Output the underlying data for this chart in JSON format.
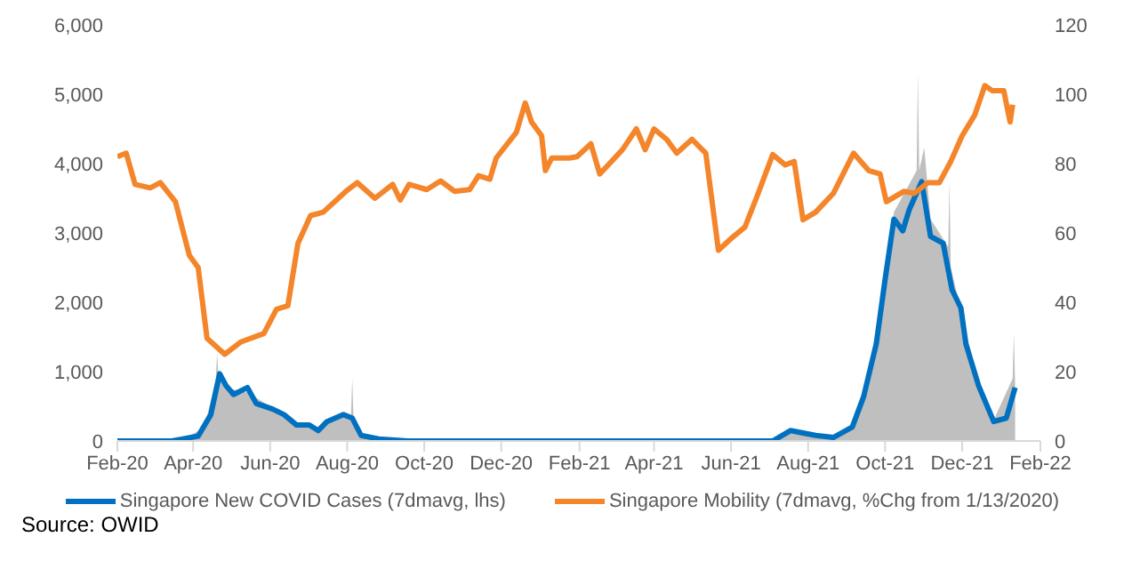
{
  "chart_data": {
    "type": "line",
    "xlim": [
      "2020-02-01",
      "2022-02-01"
    ],
    "xticks": [
      {
        "value": "2020-02-01",
        "label": "Feb-20"
      },
      {
        "value": "2020-04-01",
        "label": "Apr-20"
      },
      {
        "value": "2020-06-01",
        "label": "Jun-20"
      },
      {
        "value": "2020-08-01",
        "label": "Aug-20"
      },
      {
        "value": "2020-10-01",
        "label": "Oct-20"
      },
      {
        "value": "2020-12-01",
        "label": "Dec-20"
      },
      {
        "value": "2021-02-01",
        "label": "Feb-21"
      },
      {
        "value": "2021-04-01",
        "label": "Apr-21"
      },
      {
        "value": "2021-06-01",
        "label": "Jun-21"
      },
      {
        "value": "2021-08-01",
        "label": "Aug-21"
      },
      {
        "value": "2021-10-01",
        "label": "Oct-21"
      },
      {
        "value": "2021-12-01",
        "label": "Dec-21"
      },
      {
        "value": "2022-02-01",
        "label": "Feb-22"
      }
    ],
    "ylim": [
      0,
      6000
    ],
    "yticks": [
      0,
      {
        "value": 1000,
        "label": "1,000"
      },
      {
        "value": 2000,
        "label": "2,000"
      },
      {
        "value": 3000,
        "label": "3,000"
      },
      {
        "value": 4000,
        "label": "4,000"
      },
      {
        "value": 5000,
        "label": "5,000"
      },
      {
        "value": 6000,
        "label": "6,000"
      }
    ],
    "y2lim": [
      0,
      120
    ],
    "y2ticks": [
      0,
      20,
      40,
      60,
      80,
      100,
      120
    ],
    "legend": "bottom",
    "marker": "none",
    "series": [
      {
        "type": "area",
        "color": "#bfbfbf",
        "x": [
          "2020-02-01",
          "2020-03-25",
          "2020-04-10",
          "2020-04-19",
          "2020-04-20",
          "2020-04-21",
          "2020-05-01",
          "2020-05-14",
          "2020-06-03",
          "2020-06-22",
          "2020-07-09",
          "2020-07-29",
          "2020-08-04",
          "2020-08-05",
          "2020-08-06",
          "2020-08-14",
          "2020-09-18",
          "2021-07-04",
          "2021-07-18",
          "2021-08-21",
          "2021-09-05",
          "2021-09-14",
          "2021-09-24",
          "2021-10-08",
          "2021-10-20",
          "2021-10-26",
          "2021-10-27",
          "2021-10-28",
          "2021-11-01",
          "2021-11-06",
          "2021-11-20",
          "2021-11-21",
          "2021-11-22",
          "2021-11-30",
          "2021-12-14",
          "2021-12-26",
          "2022-01-10",
          "2022-01-11",
          "2022-01-12"
        ],
        "values": [
          0,
          30,
          200,
          900,
          1280,
          900,
          750,
          700,
          480,
          230,
          180,
          400,
          350,
          900,
          350,
          60,
          0,
          0,
          150,
          50,
          250,
          700,
          1500,
          3300,
          3700,
          3900,
          5300,
          3900,
          4230,
          3200,
          2800,
          3740,
          2500,
          1900,
          800,
          300,
          900,
          1560,
          800
        ]
      },
      {
        "name": "Singapore New COVID Cases (7dmavg, lhs)",
        "color": "#0070c0",
        "x": [
          "2020-02-01",
          "2020-03-15",
          "2020-03-24",
          "2020-04-05",
          "2020-04-15",
          "2020-04-22",
          "2020-04-27",
          "2020-05-03",
          "2020-05-14",
          "2020-05-21",
          "2020-06-03",
          "2020-06-12",
          "2020-06-22",
          "2020-07-02",
          "2020-07-09",
          "2020-07-16",
          "2020-07-29",
          "2020-08-05",
          "2020-08-12",
          "2020-08-26",
          "2020-09-18",
          "2021-07-04",
          "2021-07-18",
          "2021-08-07",
          "2021-08-21",
          "2021-09-05",
          "2021-09-14",
          "2021-09-24",
          "2021-10-01",
          "2021-10-08",
          "2021-10-15",
          "2021-10-20",
          "2021-10-30",
          "2021-11-06",
          "2021-11-16",
          "2021-11-23",
          "2021-11-30",
          "2021-12-04",
          "2021-12-14",
          "2021-12-26",
          "2022-01-05",
          "2022-01-12"
        ],
        "values": [
          0,
          0,
          30,
          70,
          380,
          970,
          800,
          670,
          770,
          540,
          460,
          380,
          230,
          230,
          150,
          280,
          380,
          330,
          80,
          30,
          0,
          0,
          150,
          80,
          50,
          200,
          640,
          1400,
          2330,
          3200,
          3030,
          3330,
          3740,
          2950,
          2850,
          2180,
          1920,
          1400,
          800,
          280,
          330,
          770
        ]
      },
      {
        "name": "Singapore Mobility (7dmavg, %Chg from 1/13/2020)",
        "color": "#f4852a",
        "axis": "y2",
        "x": [
          "2020-02-01",
          "2020-02-08",
          "2020-02-15",
          "2020-02-27",
          "2020-03-06",
          "2020-03-18",
          "2020-03-29",
          "2020-04-05",
          "2020-04-12",
          "2020-04-26",
          "2020-05-09",
          "2020-05-27",
          "2020-06-06",
          "2020-06-15",
          "2020-06-23",
          "2020-07-03",
          "2020-07-13",
          "2020-07-31",
          "2020-08-09",
          "2020-08-23",
          "2020-09-06",
          "2020-09-12",
          "2020-09-19",
          "2020-10-03",
          "2020-10-14",
          "2020-10-25",
          "2020-11-06",
          "2020-11-13",
          "2020-11-22",
          "2020-11-27",
          "2020-12-13",
          "2020-12-20",
          "2020-12-25",
          "2021-01-02",
          "2021-01-05",
          "2021-01-10",
          "2021-01-24",
          "2021-01-30",
          "2021-02-10",
          "2021-02-17",
          "2021-03-07",
          "2021-03-18",
          "2021-03-25",
          "2021-04-01",
          "2021-04-11",
          "2021-04-19",
          "2021-05-01",
          "2021-05-12",
          "2021-05-22",
          "2021-06-02",
          "2021-06-12",
          "2021-06-21",
          "2021-07-04",
          "2021-07-14",
          "2021-07-21",
          "2021-07-28",
          "2021-08-07",
          "2021-08-21",
          "2021-09-06",
          "2021-09-18",
          "2021-09-27",
          "2021-10-02",
          "2021-10-16",
          "2021-10-24",
          "2021-11-04",
          "2021-11-13",
          "2021-11-22",
          "2021-12-01",
          "2021-12-11",
          "2021-12-19",
          "2021-12-25",
          "2022-01-03",
          "2022-01-08",
          "2022-01-10"
        ],
        "values": [
          82,
          83,
          74,
          73,
          74.5,
          69,
          53.5,
          50,
          29.6,
          25,
          28.6,
          31,
          38,
          39,
          57,
          65,
          66,
          72,
          74.5,
          70,
          74,
          69.5,
          74,
          72.5,
          75,
          72,
          72.5,
          76.5,
          75.5,
          81.6,
          89,
          97.5,
          92,
          88,
          78,
          81.6,
          81.6,
          82,
          85.7,
          77,
          84,
          90,
          84,
          90,
          87,
          83,
          87,
          83,
          55,
          58.7,
          61.7,
          70,
          82.6,
          79.6,
          80.6,
          63.8,
          66,
          71.4,
          83,
          78,
          77,
          69,
          72,
          71.4,
          74.5,
          74.5,
          80.6,
          88,
          94,
          102.5,
          101,
          101,
          92,
          97
        ]
      }
    ],
    "annotations": [
      "Source: OWID"
    ]
  }
}
